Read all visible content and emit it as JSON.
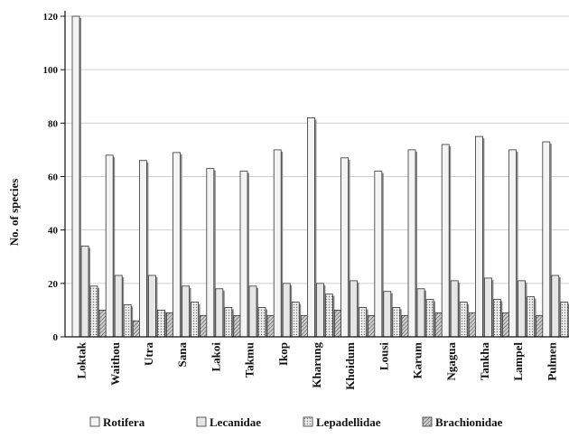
{
  "chart_data": {
    "type": "bar",
    "ylabel": "No. of species",
    "ylim": [
      0,
      120
    ],
    "yticks": [
      0,
      20,
      40,
      60,
      80,
      100,
      120
    ],
    "grid": true,
    "legend_position": "bottom",
    "categories": [
      "Loktak",
      "Waithou",
      "Utra",
      "Sana",
      "Lakoi",
      "Takmu",
      "Ikop",
      "Kharung",
      "Khoidum",
      "Lousi",
      "Karum",
      "Ngagua",
      "Tankha",
      "Lampel",
      "Pulmen"
    ],
    "series": [
      {
        "name": "Rotifera",
        "values": [
          120,
          68,
          66,
          69,
          63,
          62,
          70,
          82,
          67,
          62,
          70,
          72,
          75,
          70,
          73
        ]
      },
      {
        "name": "Lecanidae",
        "values": [
          34,
          23,
          23,
          19,
          18,
          19,
          20,
          20,
          21,
          17,
          18,
          21,
          22,
          21,
          23
        ]
      },
      {
        "name": "Lepadellidae",
        "values": [
          19,
          12,
          10,
          13,
          11,
          11,
          13,
          16,
          11,
          11,
          14,
          13,
          14,
          15,
          13
        ]
      },
      {
        "name": "Brachionidae",
        "values": [
          10,
          6,
          9,
          8,
          8,
          8,
          8,
          10,
          8,
          8,
          9,
          9,
          9,
          8,
          9
        ]
      }
    ],
    "colors": [
      "#f4f4f4",
      "#e6e6e6",
      "#d0d0d0",
      "#a8a8a8"
    ]
  }
}
